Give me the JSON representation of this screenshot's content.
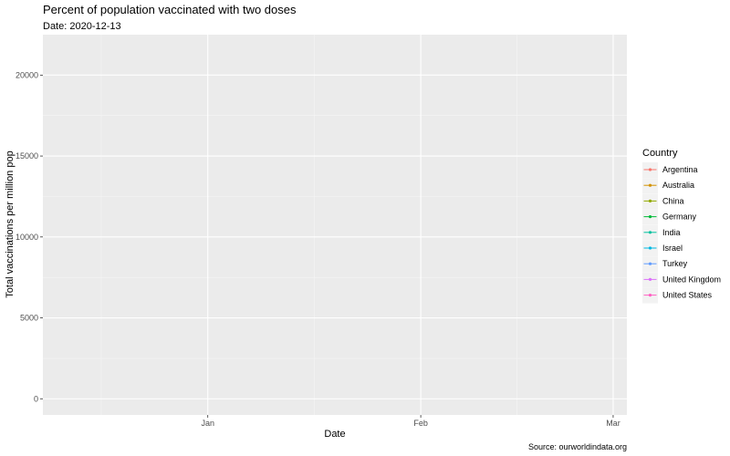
{
  "chart_data": {
    "type": "line",
    "title": "Percent of population vaccinated with two doses",
    "subtitle": "Date: 2020-12-13",
    "xlabel": "Date",
    "ylabel": "Total vaccinations per million pop",
    "caption": "Source: ourworldindata.org",
    "x_ticks": [
      "Jan",
      "Feb",
      "Mar"
    ],
    "y_ticks": [
      "0",
      "5000",
      "10000",
      "15000",
      "20000"
    ],
    "y_tick_values": [
      0,
      5000,
      10000,
      15000,
      20000
    ],
    "ylim": [
      -1000,
      22500
    ],
    "xlim": [
      "2020-12-08",
      "2021-03-03"
    ],
    "x_tick_dates": [
      "2021-01-01",
      "2021-02-01",
      "2021-03-01"
    ],
    "grid": true,
    "legend_title": "Country",
    "legend_position": "right",
    "series": [
      {
        "name": "Argentina",
        "color": "#F8766D",
        "values": []
      },
      {
        "name": "Australia",
        "color": "#D39200",
        "values": []
      },
      {
        "name": "China",
        "color": "#93AA00",
        "values": []
      },
      {
        "name": "Germany",
        "color": "#00BA38",
        "values": []
      },
      {
        "name": "India",
        "color": "#00C19F",
        "values": []
      },
      {
        "name": "Israel",
        "color": "#00B9E3",
        "values": []
      },
      {
        "name": "Turkey",
        "color": "#619CFF",
        "values": []
      },
      {
        "name": "United Kingdom",
        "color": "#DB72FB",
        "values": []
      },
      {
        "name": "United States",
        "color": "#FF61C3",
        "values": []
      }
    ]
  }
}
